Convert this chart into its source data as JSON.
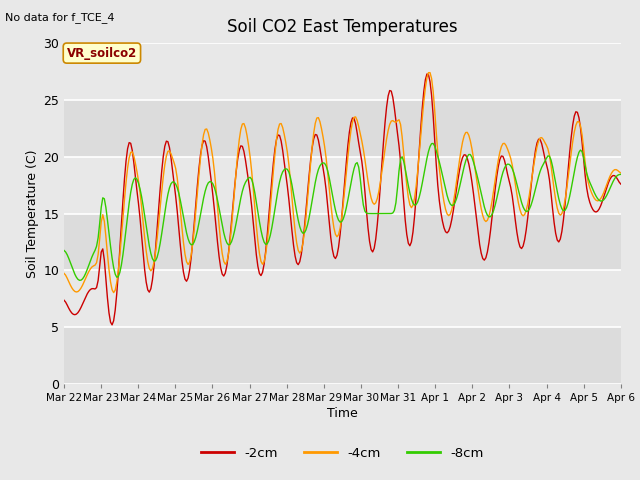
{
  "title": "Soil CO2 East Temperatures",
  "no_data_label": "No data for f_TCE_4",
  "vr_label": "VR_soilco2",
  "xlabel": "Time",
  "ylabel": "Soil Temperature (C)",
  "ylim": [
    0,
    30
  ],
  "bg_color": "#e8e8e8",
  "legend_entries": [
    "-2cm",
    "-4cm",
    "-8cm"
  ],
  "legend_colors": [
    "#cc0000",
    "#ff9900",
    "#33cc00"
  ],
  "line_colors": [
    "#cc0000",
    "#ff9900",
    "#33cc00"
  ],
  "xtick_labels": [
    "Mar 22",
    "Mar 23",
    "Mar 24",
    "Mar 25",
    "Mar 26",
    "Mar 27",
    "Mar 28",
    "Mar 29",
    "Mar 30",
    "Mar 31",
    "Apr 1",
    "Apr 2",
    "Apr 3",
    "Apr 4",
    "Apr 5",
    "Apr 6"
  ],
  "band_colors": [
    "#dcdcdc",
    "#e8e8e8"
  ],
  "yticks": [
    0,
    5,
    10,
    15,
    20,
    25,
    30
  ]
}
